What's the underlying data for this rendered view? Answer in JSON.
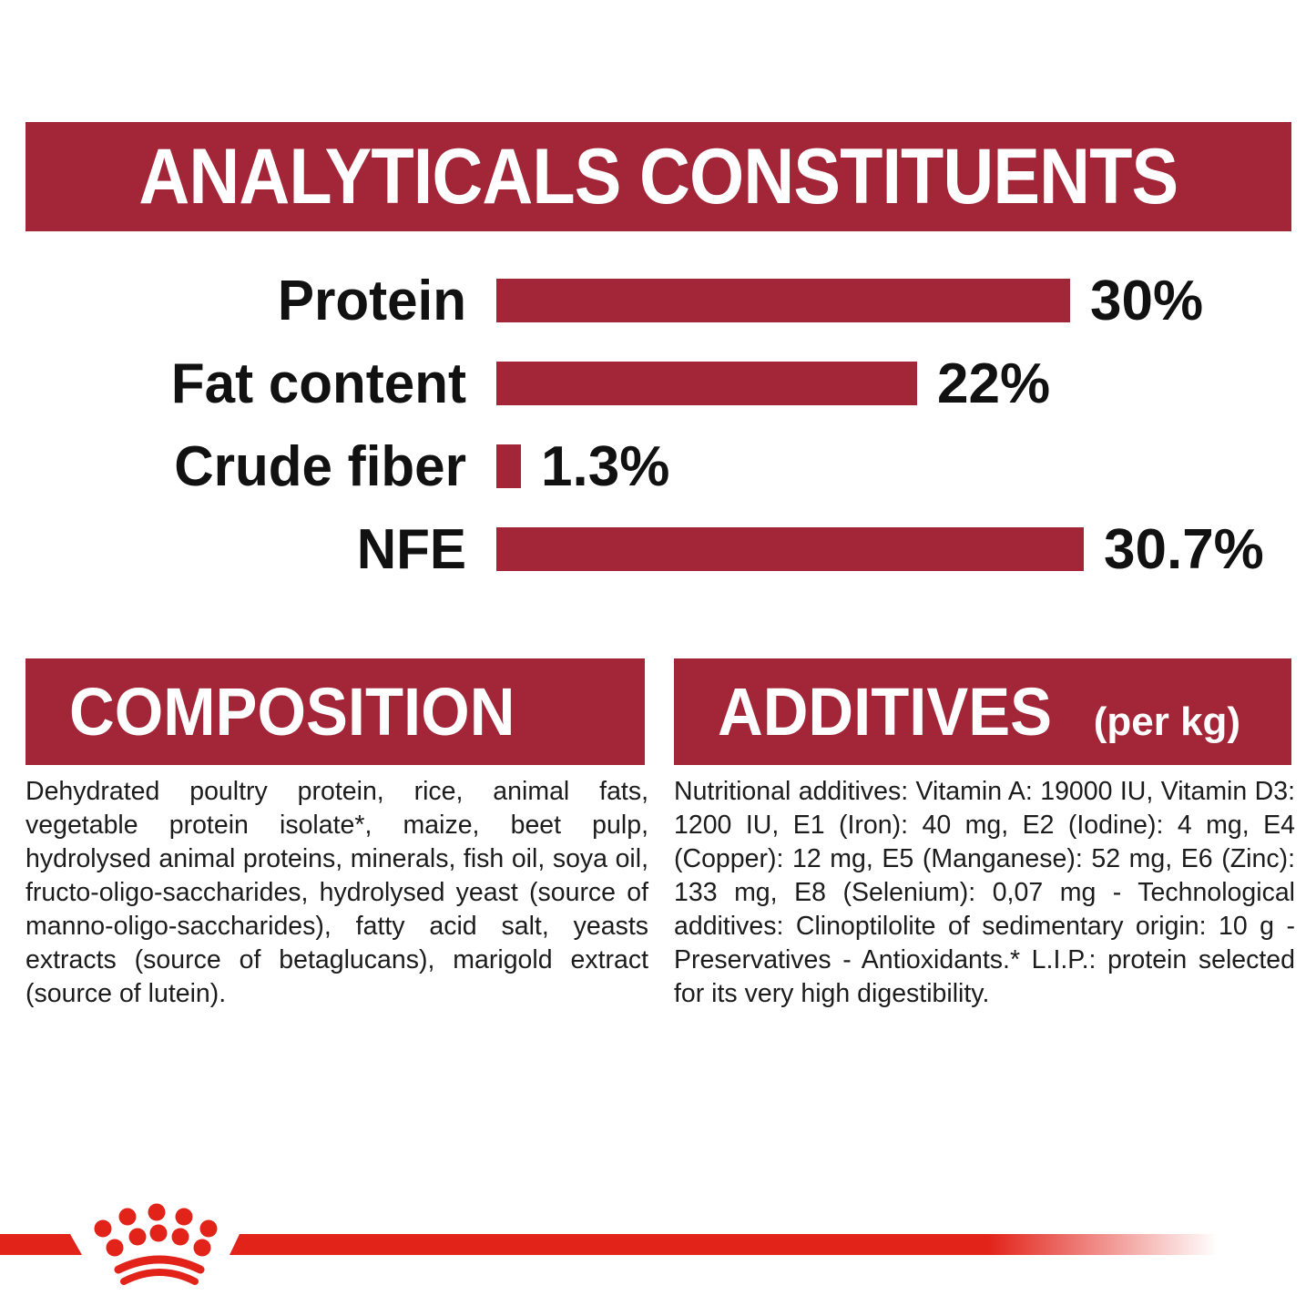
{
  "page": {
    "background": "#ffffff",
    "dark_red": "#A32638",
    "bright_red": "#E2231A",
    "text_color": "#1c1c1c"
  },
  "header": {
    "title": "ANALYTICALS CONSTITUENTS"
  },
  "chart_data": {
    "type": "bar",
    "orientation": "horizontal",
    "title": "ANALYTICALS CONSTITUENTS",
    "categories": [
      "Protein",
      "Fat content",
      "Crude fiber",
      "NFE"
    ],
    "values": [
      30,
      22,
      1.3,
      30.7
    ],
    "value_labels": [
      "30%",
      "22%",
      "1.3%",
      "30.7%"
    ],
    "unit": "%",
    "xlim": [
      0,
      31
    ],
    "bar_color": "#A32638",
    "grid": "off",
    "value_label_position": "right-of-bar"
  },
  "composition": {
    "title": "COMPOSITION",
    "body": "Dehydrated poultry protein, rice, animal fats, vegetable protein isolate*, maize, beet pulp, hydrolysed animal proteins, minerals, fish oil, soya oil, fructo-oligo-saccharides, hydrolysed yeast (source of manno-oligo-saccharides), fatty acid salt, yeasts extracts (source of betaglucans), marigold extract (source of lutein)."
  },
  "additives": {
    "title": "ADDITIVES",
    "title_suffix": "(per kg)",
    "body": "Nutritional additives: Vitamin A: 19000 IU, Vitamin D3: 1200 IU, E1 (Iron): 40 mg, E2 (Iodine): 4 mg, E4 (Copper): 12 mg, E5 (Manganese): 52 mg, E6 (Zinc): 133 mg, E8 (Selenium): 0,07 mg - Technological additives: Clinoptilolite of sedimentary origin: 10 g - Preservatives - Antioxidants.* L.I.P.: protein selected for its very high digestibility."
  },
  "footer": {
    "logo": "royal-canin-crown"
  }
}
